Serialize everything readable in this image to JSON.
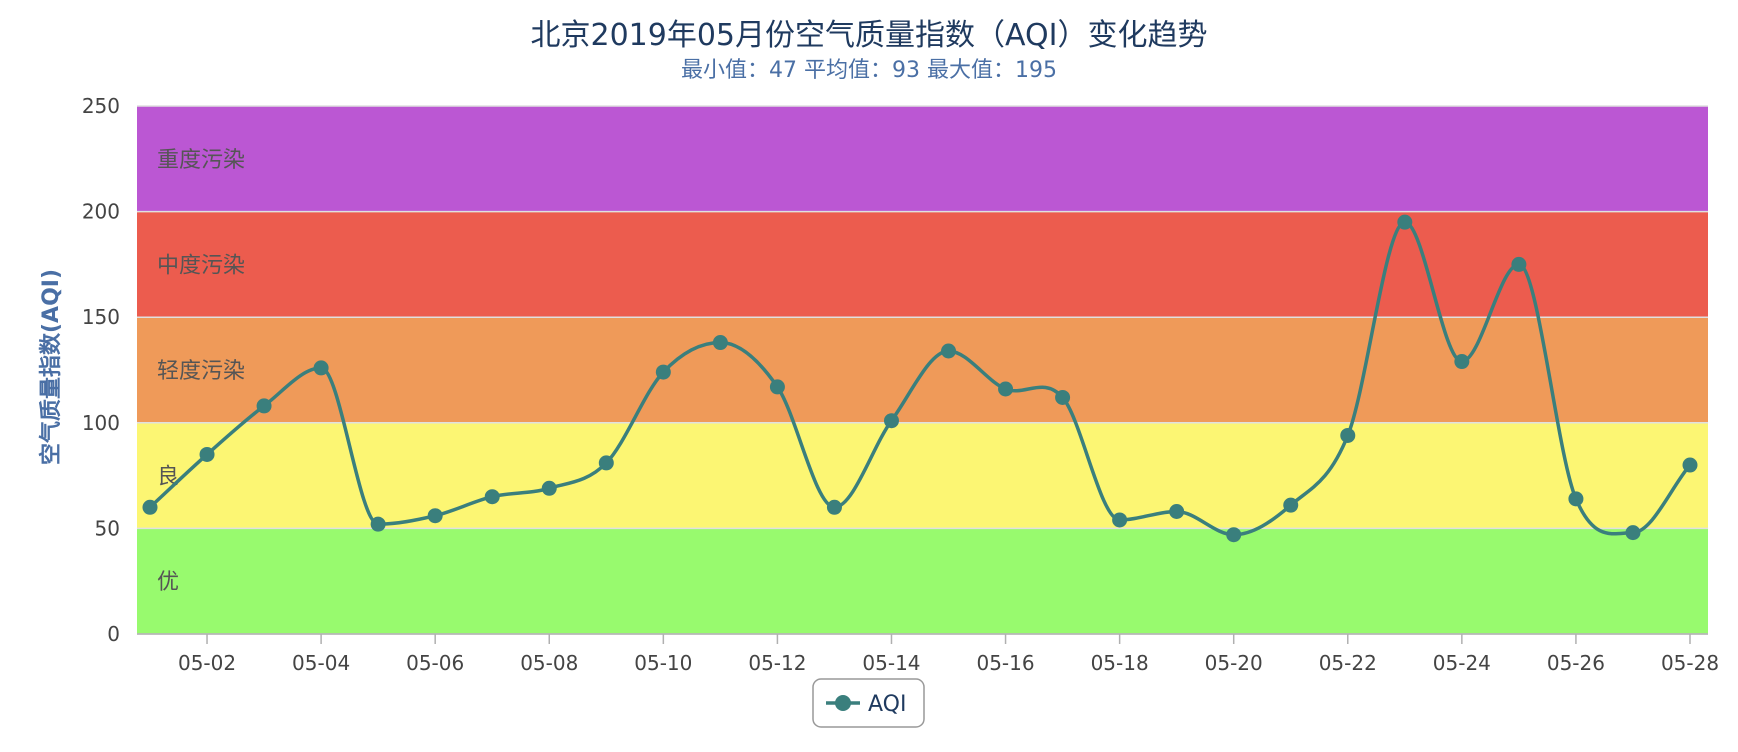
{
  "chart_data": {
    "type": "line",
    "title": "北京2019年05月份空气质量指数（AQI）变化趋势",
    "subtitle": "最小值：47 平均值：93 最大值：195",
    "ylabel": "空气质量指数(AQI)",
    "xlabel": "",
    "ylim": [
      0,
      250
    ],
    "yticks": [
      "0",
      "50",
      "100",
      "150",
      "200",
      "250"
    ],
    "x": [
      "05-01",
      "05-02",
      "05-03",
      "05-04",
      "05-05",
      "05-06",
      "05-07",
      "05-08",
      "05-09",
      "05-10",
      "05-11",
      "05-12",
      "05-13",
      "05-14",
      "05-15",
      "05-16",
      "05-17",
      "05-18",
      "05-19",
      "05-20",
      "05-21",
      "05-22",
      "05-23",
      "05-24",
      "05-25",
      "05-26",
      "05-27",
      "05-28"
    ],
    "x_tick_labels": [
      "05-02",
      "05-04",
      "05-06",
      "05-08",
      "05-10",
      "05-12",
      "05-14",
      "05-16",
      "05-18",
      "05-20",
      "05-22",
      "05-24",
      "05-26",
      "05-28"
    ],
    "series": [
      {
        "name": "AQI",
        "color": "#3a7f7d",
        "values": [
          60,
          85,
          108,
          126,
          52,
          56,
          65,
          69,
          81,
          124,
          138,
          117,
          60,
          101,
          134,
          116,
          112,
          54,
          58,
          47,
          61,
          94,
          195,
          129,
          175,
          64,
          48,
          80
        ]
      }
    ],
    "bands": [
      {
        "label": "优",
        "from": 0,
        "to": 50,
        "color": "#98fa6e"
      },
      {
        "label": "良",
        "from": 50,
        "to": 100,
        "color": "#fcf673"
      },
      {
        "label": "轻度污染",
        "from": 100,
        "to": 150,
        "color": "#ef9a59"
      },
      {
        "label": "中度污染",
        "from": 150,
        "to": 200,
        "color": "#ec5c4e"
      },
      {
        "label": "重度污染",
        "from": 200,
        "to": 250,
        "color": "#bb57d3"
      }
    ],
    "legend": {
      "position": "bottom-center",
      "entries": [
        "AQI"
      ]
    },
    "grid": true
  }
}
